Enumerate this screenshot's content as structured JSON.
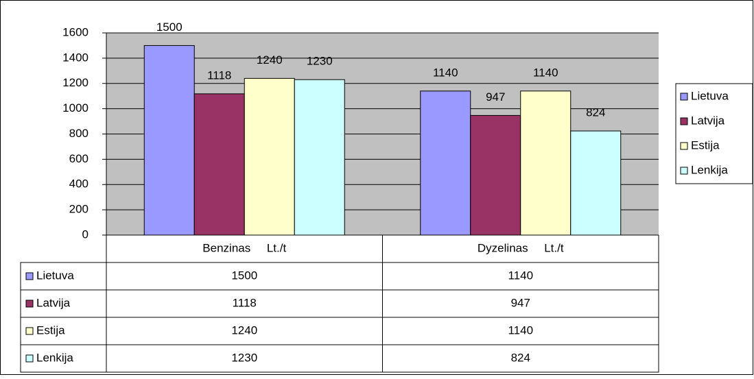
{
  "chart_data": {
    "type": "bar",
    "categories": [
      "Benzinas     Lt./t",
      "Dyzelinas     Lt./t"
    ],
    "series": [
      {
        "name": "Lietuva",
        "color": "#9999ff",
        "values": [
          1500,
          1140
        ]
      },
      {
        "name": "Latvija",
        "color": "#993366",
        "values": [
          1118,
          947
        ]
      },
      {
        "name": "Estija",
        "color": "#ffffcc",
        "values": [
          1240,
          1140
        ]
      },
      {
        "name": "Lenkija",
        "color": "#ccffff",
        "values": [
          1230,
          824
        ]
      }
    ],
    "ylim": [
      0,
      1600
    ],
    "yticks": [
      0,
      200,
      400,
      600,
      800,
      1000,
      1200,
      1400,
      1600
    ],
    "grid": true,
    "legend": "right",
    "plot_background": "#c0c0c0",
    "data_table": true
  }
}
